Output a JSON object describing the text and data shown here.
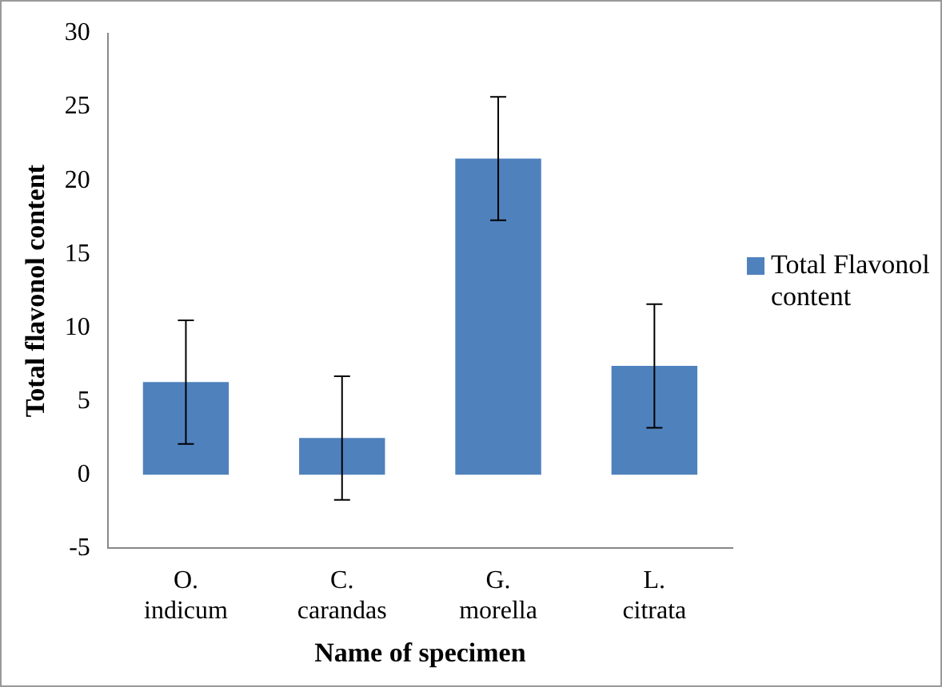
{
  "chart_data": {
    "type": "bar",
    "xlabel": "Name of specimen",
    "ylabel": "Total flavonol content",
    "categories": [
      "O. indicum",
      "C. carandas",
      "G. morella",
      "L. citrata"
    ],
    "series": [
      {
        "name": "Total Flavonol content",
        "color": "#4f81bd",
        "values": [
          6.3,
          2.5,
          21.5,
          7.4
        ],
        "errors": [
          4.2,
          4.2,
          4.2,
          4.2
        ]
      }
    ],
    "ylim": [
      -5,
      30
    ],
    "yticks": [
      -5,
      0,
      5,
      10,
      15,
      20,
      25,
      30
    ],
    "grid": false,
    "legend": "right"
  }
}
